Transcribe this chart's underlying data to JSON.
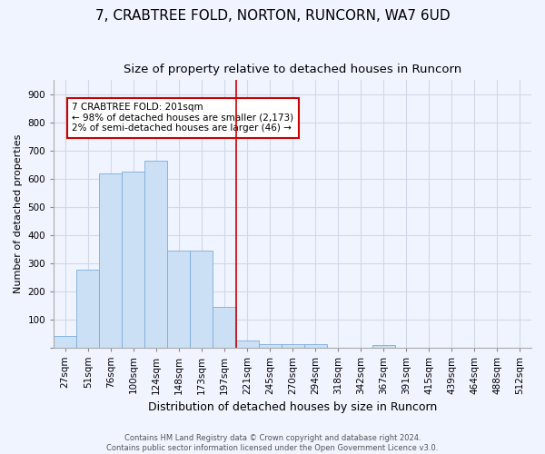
{
  "title": "7, CRABTREE FOLD, NORTON, RUNCORN, WA7 6UD",
  "subtitle": "Size of property relative to detached houses in Runcorn",
  "xlabel": "Distribution of detached houses by size in Runcorn",
  "ylabel": "Number of detached properties",
  "bin_labels": [
    "27sqm",
    "51sqm",
    "76sqm",
    "100sqm",
    "124sqm",
    "148sqm",
    "173sqm",
    "197sqm",
    "221sqm",
    "245sqm",
    "270sqm",
    "294sqm",
    "318sqm",
    "342sqm",
    "367sqm",
    "391sqm",
    "415sqm",
    "439sqm",
    "464sqm",
    "488sqm",
    "512sqm"
  ],
  "bar_values": [
    40,
    275,
    620,
    625,
    665,
    345,
    345,
    145,
    25,
    12,
    10,
    10,
    0,
    0,
    8,
    0,
    0,
    0,
    0,
    0,
    0
  ],
  "bar_color": "#cce0f5",
  "bar_edge_color": "#7aabdb",
  "vline_x_index": 7,
  "vline_color": "#cc0000",
  "annotation_text": "7 CRABTREE FOLD: 201sqm\n← 98% of detached houses are smaller (2,173)\n2% of semi-detached houses are larger (46) →",
  "annotation_box_color": "#cc0000",
  "ylim": [
    0,
    950
  ],
  "yticks": [
    0,
    100,
    200,
    300,
    400,
    500,
    600,
    700,
    800,
    900
  ],
  "grid_color": "#d0d8e8",
  "background_color": "#f0f4ff",
  "footer_text": "Contains HM Land Registry data © Crown copyright and database right 2024.\nContains public sector information licensed under the Open Government Licence v3.0.",
  "title_fontsize": 11,
  "subtitle_fontsize": 9.5,
  "xlabel_fontsize": 9,
  "ylabel_fontsize": 8,
  "tick_fontsize": 7.5,
  "annotation_fontsize": 7.5,
  "footer_fontsize": 6
}
